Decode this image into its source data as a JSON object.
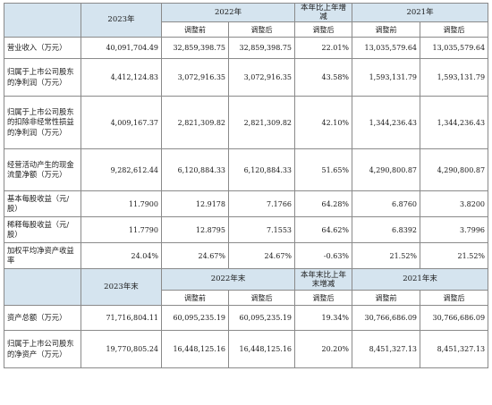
{
  "section1": {
    "headers": {
      "y2023": "2023年",
      "y2022": "2022年",
      "change": "本年比上年增减",
      "y2021": "2021年"
    },
    "subheaders": {
      "before_2022": "调整前",
      "after_2022": "调整后",
      "after_change": "调整后",
      "before_2021": "调整前",
      "after_2021": "调整后"
    },
    "rows": [
      {
        "label": "营业收入（万元）",
        "v2023": "40,091,704.49",
        "b2022": "32,859,398.75",
        "a2022": "32,859,398.75",
        "chg": "22.01%",
        "b2021": "13,035,579.64",
        "a2021": "13,035,579.64"
      },
      {
        "label": "归属于上市公司股东的净利润（万元）",
        "v2023": "4,412,124.83",
        "b2022": "3,072,916.35",
        "a2022": "3,072,916.35",
        "chg": "43.58%",
        "b2021": "1,593,131.79",
        "a2021": "1,593,131.79"
      },
      {
        "label": "归属于上市公司股东的扣除非经常性损益的净利润（万元）",
        "v2023": "4,009,167.37",
        "b2022": "2,821,309.82",
        "a2022": "2,821,309.82",
        "chg": "42.10%",
        "b2021": "1,344,236.43",
        "a2021": "1,344,236.43"
      },
      {
        "label": "经营活动产生的现金流量净额（万元）",
        "v2023": "9,282,612.44",
        "b2022": "6,120,884.33",
        "a2022": "6,120,884.33",
        "chg": "51.65%",
        "b2021": "4,290,800.87",
        "a2021": "4,290,800.87"
      },
      {
        "label": "基本每股收益（元/股）",
        "v2023": "11.7900",
        "b2022": "12.9178",
        "a2022": "7.1766",
        "chg": "64.28%",
        "b2021": "6.8760",
        "a2021": "3.8200"
      },
      {
        "label": "稀释每股收益（元/股）",
        "v2023": "11.7790",
        "b2022": "12.8795",
        "a2022": "7.1553",
        "chg": "64.62%",
        "b2021": "6.8392",
        "a2021": "3.7996"
      },
      {
        "label": "加权平均净资产收益率",
        "v2023": "24.04%",
        "b2022": "24.67%",
        "a2022": "24.67%",
        "chg": "-0.63%",
        "b2021": "21.52%",
        "a2021": "21.52%"
      }
    ]
  },
  "section2": {
    "headers": {
      "y2023": "2023年末",
      "y2022": "2022年末",
      "change": "本年末比上年末增减",
      "y2021": "2021年末"
    },
    "subheaders": {
      "before_2022": "调整前",
      "after_2022": "调整后",
      "after_change": "调整后",
      "before_2021": "调整前",
      "after_2021": "调整后"
    },
    "rows": [
      {
        "label": "资产总额（万元）",
        "v2023": "71,716,804.11",
        "b2022": "60,095,235.19",
        "a2022": "60,095,235.19",
        "chg": "19.34%",
        "b2021": "30,766,686.09",
        "a2021": "30,766,686.09"
      },
      {
        "label": "归属于上市公司股东的净资产（万元）",
        "v2023": "19,770,805.24",
        "b2022": "16,448,125.16",
        "a2022": "16,448,125.16",
        "chg": "20.20%",
        "b2021": "8,451,327.13",
        "a2021": "8,451,327.13"
      }
    ]
  }
}
